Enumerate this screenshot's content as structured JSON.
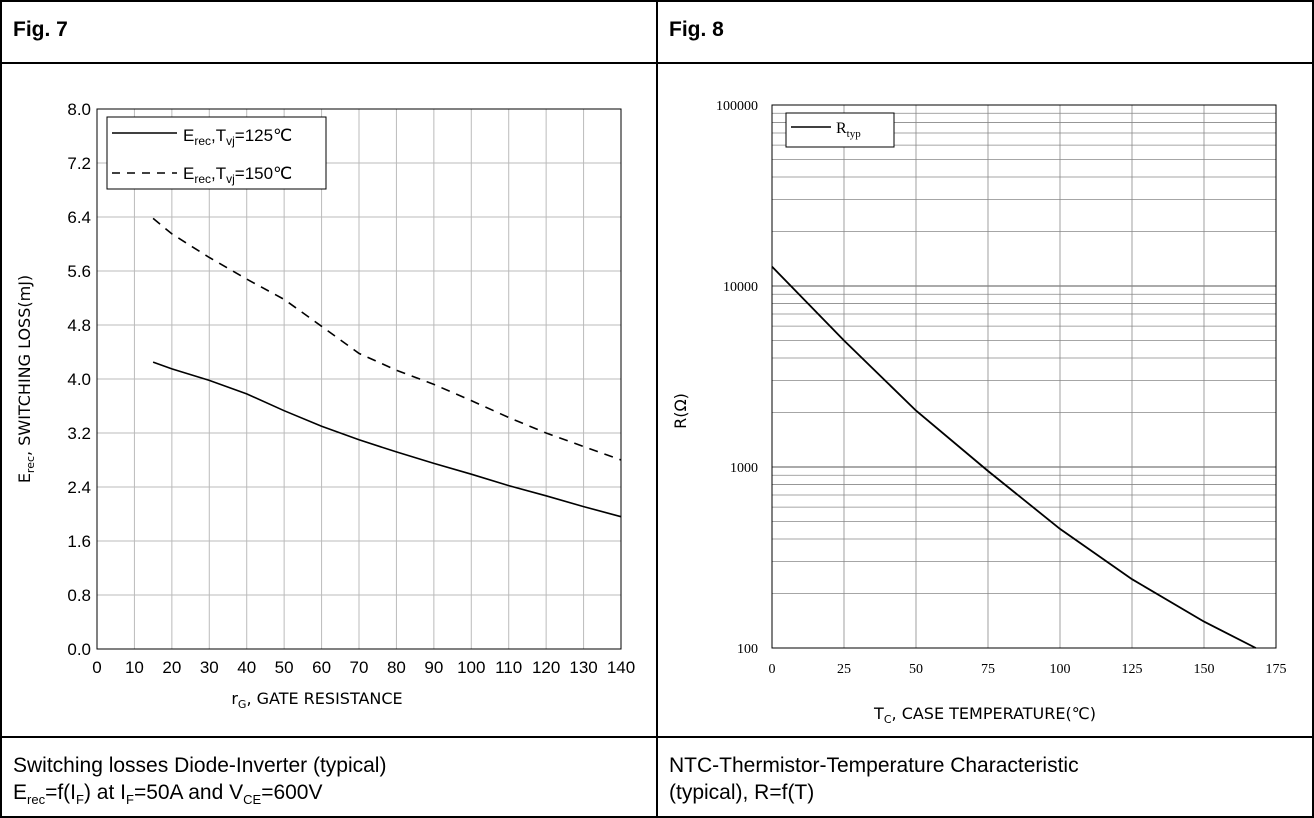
{
  "headers": {
    "left": "Fig. 7",
    "right": "Fig. 8"
  },
  "captions": {
    "left_line1": "Switching losses Diode-Inverter (typical)",
    "left_line2": {
      "E": "E",
      "rec": "rec",
      "f": "=f(I",
      "F1": "F",
      "at": ") at I",
      "F2": "F",
      "and": "=50A and V",
      "CE": "CE",
      "v": "=600V"
    },
    "right_line1": "NTC-Thermistor-Temperature Characteristic",
    "right_line2": "(typical), R=f(T)"
  },
  "chart_data": [
    {
      "type": "line",
      "ylabel": {
        "main": "E",
        "sub": "rec",
        "rest": ", SWITCHING LOSS(mJ)"
      },
      "xlabel": {
        "main": "r",
        "sub": "G",
        "rest": ", GATE RESISTANCE"
      },
      "xlim": [
        0,
        140
      ],
      "ylim": [
        0,
        8
      ],
      "xticks": [
        "0",
        "10",
        "20",
        "30",
        "40",
        "50",
        "60",
        "70",
        "80",
        "90",
        "100",
        "110",
        "120",
        "130",
        "140"
      ],
      "yticks": [
        "0.0",
        "0.8",
        "1.6",
        "2.4",
        "3.2",
        "4.0",
        "4.8",
        "5.6",
        "6.4",
        "7.2",
        "8.0"
      ],
      "grid": true,
      "legend_position": "top-left",
      "series": [
        {
          "name": {
            "a": "E",
            "b": "rec",
            "c": ",T",
            "d": "vj",
            "e": "=125℃"
          },
          "style": "solid",
          "x": [
            15,
            20,
            30,
            40,
            50,
            60,
            70,
            80,
            90,
            100,
            110,
            120,
            130,
            140
          ],
          "y": [
            4.25,
            4.15,
            3.98,
            3.78,
            3.53,
            3.3,
            3.1,
            2.92,
            2.75,
            2.59,
            2.42,
            2.27,
            2.11,
            1.96
          ]
        },
        {
          "name": {
            "a": "E",
            "b": "rec",
            "c": ",T",
            "d": "vj",
            "e": "=150℃"
          },
          "style": "dashed",
          "x": [
            15,
            20,
            30,
            40,
            50,
            60,
            70,
            80,
            90,
            100,
            110,
            120,
            130,
            140
          ],
          "y": [
            6.38,
            6.15,
            5.8,
            5.48,
            5.18,
            4.78,
            4.38,
            4.13,
            3.92,
            3.68,
            3.43,
            3.2,
            3.0,
            2.8
          ]
        }
      ]
    },
    {
      "type": "line",
      "ylabel": "R(Ω)",
      "xlabel": {
        "main": "T",
        "sub": "C",
        "rest": ", CASE TEMPERATURE(℃)"
      },
      "xlim": [
        0,
        175
      ],
      "ylim": [
        100,
        100000
      ],
      "yscale": "log",
      "xticks": [
        "0",
        "25",
        "50",
        "75",
        "100",
        "125",
        "150",
        "175"
      ],
      "yticks": [
        "100",
        "1000",
        "10000",
        "100000"
      ],
      "grid": true,
      "legend_position": "top-left",
      "series": [
        {
          "name": {
            "a": "R",
            "b": "typ"
          },
          "style": "solid",
          "x": [
            0,
            25,
            50,
            75,
            100,
            125,
            150,
            168
          ],
          "y": [
            12800,
            5000,
            2050,
            950,
            455,
            240,
            140,
            100
          ]
        }
      ]
    }
  ]
}
